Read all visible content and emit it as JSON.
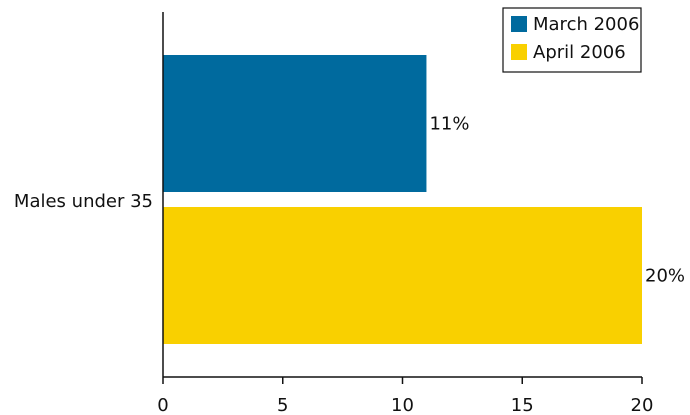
{
  "chart_data": {
    "type": "bar",
    "orientation": "horizontal",
    "categories": [
      "Males under 35"
    ],
    "series": [
      {
        "name": "March 2006",
        "values": [
          11
        ],
        "data_labels": [
          "11%"
        ],
        "color": "#006a9e"
      },
      {
        "name": "April 2006",
        "values": [
          20
        ],
        "data_labels": [
          "20%"
        ],
        "color": "#f9d000"
      }
    ],
    "xlim": [
      0,
      20
    ],
    "xticks": [
      0,
      5,
      10,
      15,
      20
    ],
    "xtick_labels": [
      "0",
      "5",
      "10",
      "15",
      "20"
    ],
    "title": "",
    "xlabel": "",
    "ylabel": "",
    "grid": false,
    "legend_position": "top-right"
  }
}
